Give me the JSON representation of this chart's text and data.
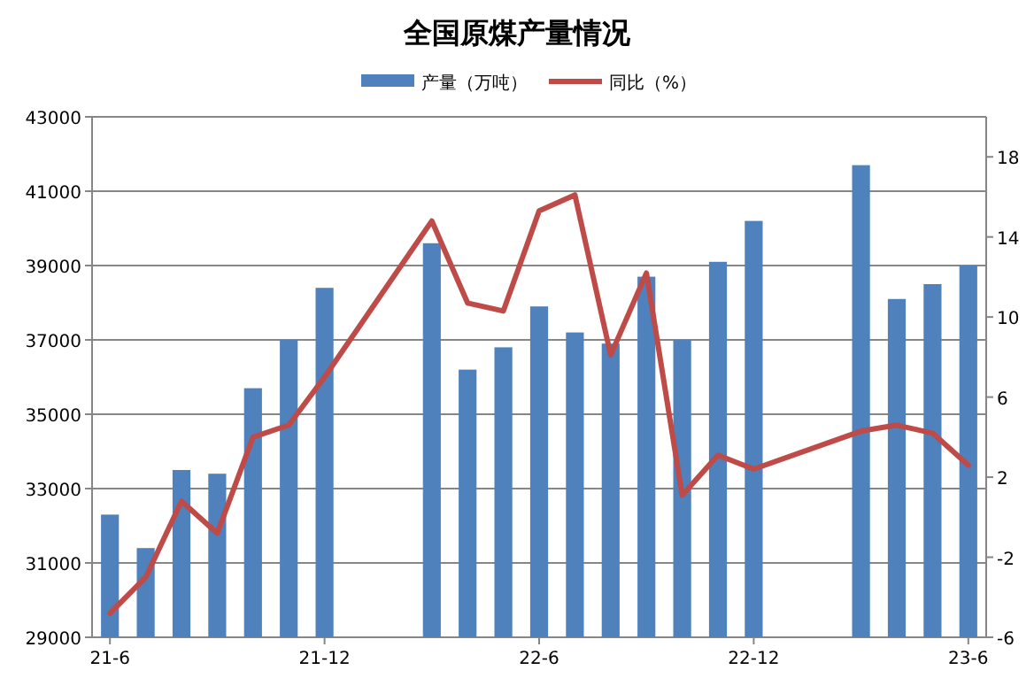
{
  "chart_data": {
    "type": "bar",
    "title": "全国原煤产量情况",
    "categories": [
      "21-6",
      null,
      null,
      null,
      null,
      null,
      "21-12",
      null,
      null,
      null,
      null,
      null,
      "22-6",
      null,
      null,
      null,
      null,
      null,
      "22-12",
      null,
      null,
      null,
      null,
      null,
      "23-6"
    ],
    "series": [
      {
        "name": "产量（万吨）",
        "color": "#4f81bd",
        "values": [
          32300,
          31400,
          33500,
          33400,
          35700,
          37000,
          38400,
          null,
          null,
          39600,
          36200,
          36800,
          37900,
          37200,
          36900,
          38700,
          37000,
          39100,
          40200,
          null,
          null,
          41700,
          38100,
          38500,
          39000
        ]
      },
      {
        "name": "同比（%）",
        "type": "line",
        "axis": "y2",
        "color": "#be4b48",
        "values": [
          -4.8,
          -3.0,
          0.8,
          -0.8,
          4.0,
          4.6,
          7.0,
          null,
          null,
          14.8,
          10.7,
          10.3,
          15.3,
          16.1,
          8.1,
          12.2,
          1.1,
          3.1,
          2.4,
          null,
          null,
          4.3,
          4.6,
          4.2,
          2.6
        ]
      }
    ],
    "ylim": [
      29000,
      43000
    ],
    "yticks": [
      29000,
      31000,
      33000,
      35000,
      37000,
      39000,
      41000,
      43000
    ],
    "y2lim": [
      -6,
      20
    ],
    "y2ticks": [
      -6,
      -2,
      2,
      6,
      10,
      14,
      18
    ],
    "grid": "y",
    "legend": "top"
  }
}
